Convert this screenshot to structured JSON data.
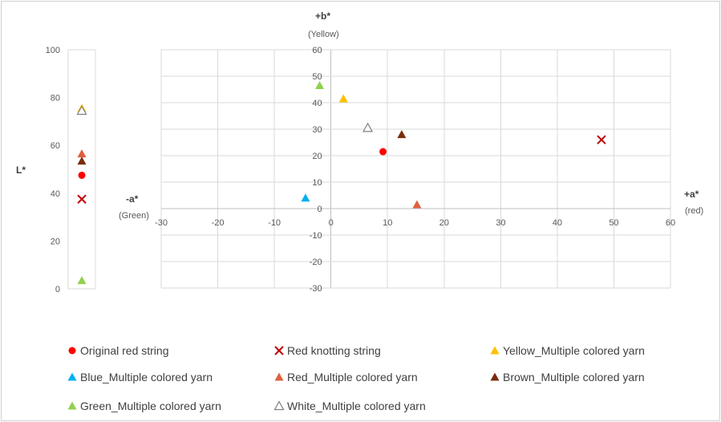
{
  "chart_data": [
    {
      "type": "scatter",
      "title": "",
      "ylabel": "L*",
      "ylim": [
        0,
        100
      ],
      "yticks": [
        "0",
        "20",
        "40",
        "60",
        "80",
        "100"
      ],
      "series": [
        {
          "name": "Original red string",
          "marker": "circle",
          "color": "#ff0000",
          "values": [
            47.5
          ]
        },
        {
          "name": "Red knotting string",
          "marker": "x",
          "color": "#c00000",
          "values": [
            37.5
          ]
        },
        {
          "name": "Yellow_Multiple colored yarn",
          "marker": "triangle",
          "color": "#ffc000",
          "values": [
            75.5
          ]
        },
        {
          "name": "Blue_Multiple colored yarn",
          "marker": "triangle",
          "color": "#00b0f0",
          "values": []
        },
        {
          "name": "Red_Multiple colored yarn",
          "marker": "triangle",
          "color": "#e06040",
          "values": [
            56.5
          ]
        },
        {
          "name": "Brown_Multiple colored yarn",
          "marker": "triangle",
          "color": "#7b2c0c",
          "values": [
            53.5
          ]
        },
        {
          "name": "Green_Multiple colored yarn",
          "marker": "triangle",
          "color": "#92d050",
          "values": [
            3.5
          ]
        },
        {
          "name": "White_Multiple colored yarn",
          "marker": "triangle-open",
          "color": "#808080",
          "values": [
            74.5
          ]
        }
      ]
    },
    {
      "type": "scatter",
      "title": "",
      "xlim": [
        -30,
        60
      ],
      "ylim": [
        -30,
        60
      ],
      "xticks": [
        "-30",
        "-20",
        "-10",
        "0",
        "10",
        "20",
        "30",
        "40",
        "50",
        "60"
      ],
      "yticks": [
        "-30",
        "-20",
        "-10",
        "0",
        "10",
        "20",
        "30",
        "40",
        "50",
        "60"
      ],
      "grid": true,
      "x_axis_labels": {
        "positive": "+a*",
        "positive_sub": "(red)",
        "negative": "-a*",
        "negative_sub": "(Green)"
      },
      "y_axis_labels": {
        "positive": "+b*",
        "positive_sub": "(Yellow)"
      },
      "legend_position": "bottom",
      "series": [
        {
          "name": "Original red string",
          "marker": "circle",
          "color": "#ff0000",
          "x": [
            9.2
          ],
          "y": [
            21.5
          ]
        },
        {
          "name": "Red knotting string",
          "marker": "x",
          "color": "#c00000",
          "x": [
            47.8
          ],
          "y": [
            26
          ]
        },
        {
          "name": "Yellow_Multiple colored yarn",
          "marker": "triangle",
          "color": "#ffc000",
          "x": [
            2.2
          ],
          "y": [
            41.5
          ]
        },
        {
          "name": "Blue_Multiple colored yarn",
          "marker": "triangle",
          "color": "#00b0f0",
          "x": [
            -4.5
          ],
          "y": [
            4
          ]
        },
        {
          "name": "Red_Multiple colored yarn",
          "marker": "triangle",
          "color": "#e06040",
          "x": [
            15.2
          ],
          "y": [
            1.5
          ]
        },
        {
          "name": "Brown_Multiple colored yarn",
          "marker": "triangle",
          "color": "#7b2c0c",
          "x": [
            12.5
          ],
          "y": [
            28
          ]
        },
        {
          "name": "Green_Multiple colored yarn",
          "marker": "triangle",
          "color": "#92d050",
          "x": [
            -2
          ],
          "y": [
            46.5
          ]
        },
        {
          "name": "White_Multiple colored yarn",
          "marker": "triangle-open",
          "color": "#808080",
          "x": [
            6.5
          ],
          "y": [
            30.5
          ]
        }
      ]
    }
  ]
}
